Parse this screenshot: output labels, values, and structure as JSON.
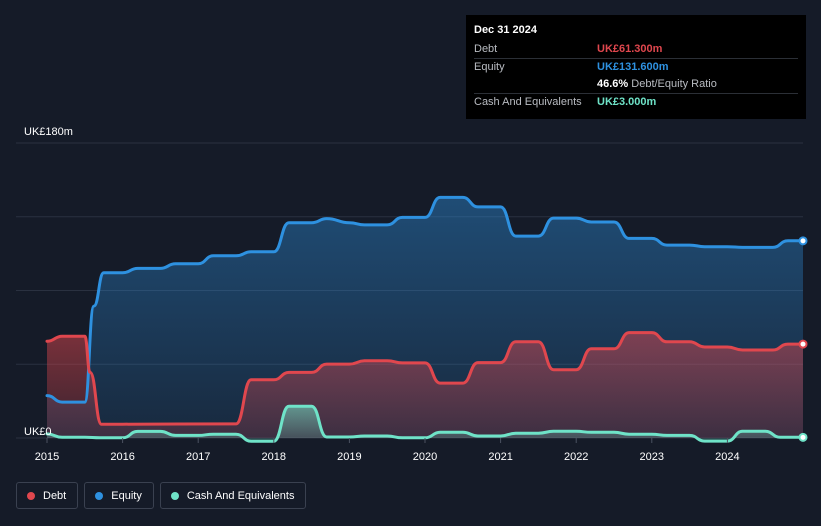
{
  "tooltip": {
    "date": "Dec 31 2024",
    "rows": [
      {
        "name": "Debt",
        "value": "UK£61.300m",
        "color": "#e0474e"
      },
      {
        "name": "Equity",
        "value": "UK£131.600m",
        "color": "#2e91e0"
      },
      {
        "name": "",
        "value": "46.6%",
        "extra": "Debt/Equity Ratio",
        "color": "#ffffff"
      },
      {
        "name": "Cash And Equivalents",
        "value": "UK£3.000m",
        "color": "#6fe3c8"
      }
    ]
  },
  "legend": [
    {
      "label": "Debt",
      "color": "#e0474e"
    },
    {
      "label": "Equity",
      "color": "#2e91e0"
    },
    {
      "label": "Cash And Equivalents",
      "color": "#6fe3c8"
    }
  ],
  "chart_data": {
    "type": "area",
    "title": "",
    "xlabel": "",
    "ylabel": "",
    "y_top_label": "UK£180m",
    "y_bottom_label": "UK£0",
    "ylim": [
      0,
      180
    ],
    "xlim": [
      2015.0,
      2025.0
    ],
    "x_ticks": [
      "2015",
      "2016",
      "2017",
      "2018",
      "2019",
      "2020",
      "2021",
      "2022",
      "2023",
      "2024"
    ],
    "grid": true,
    "legend_position": "bottom-left",
    "series": [
      {
        "name": "Equity",
        "color": "#2e91e0",
        "points": [
          [
            2015.0,
            25.9
          ],
          [
            2015.2,
            21.9
          ],
          [
            2015.5,
            21.9
          ],
          [
            2015.62,
            80.5
          ],
          [
            2015.75,
            100.8
          ],
          [
            2016.0,
            100.8
          ],
          [
            2016.2,
            103.5
          ],
          [
            2016.5,
            103.5
          ],
          [
            2016.7,
            106.3
          ],
          [
            2017.0,
            106.3
          ],
          [
            2017.2,
            111.2
          ],
          [
            2017.5,
            111.2
          ],
          [
            2017.7,
            113.6
          ],
          [
            2018.0,
            113.6
          ],
          [
            2018.2,
            131.4
          ],
          [
            2018.5,
            131.4
          ],
          [
            2018.7,
            133.9
          ],
          [
            2019.0,
            131.4
          ],
          [
            2019.2,
            130.0
          ],
          [
            2019.5,
            130.0
          ],
          [
            2019.7,
            134.6
          ],
          [
            2020.0,
            134.6
          ],
          [
            2020.2,
            146.8
          ],
          [
            2020.5,
            146.8
          ],
          [
            2020.7,
            141.0
          ],
          [
            2021.0,
            141.0
          ],
          [
            2021.2,
            123.2
          ],
          [
            2021.5,
            123.2
          ],
          [
            2021.7,
            134.2
          ],
          [
            2022.0,
            134.2
          ],
          [
            2022.2,
            131.8
          ],
          [
            2022.5,
            131.8
          ],
          [
            2022.7,
            121.8
          ],
          [
            2023.0,
            121.8
          ],
          [
            2023.2,
            117.7
          ],
          [
            2023.5,
            117.7
          ],
          [
            2023.7,
            116.7
          ],
          [
            2024.0,
            116.7
          ],
          [
            2024.2,
            116.3
          ],
          [
            2024.6,
            116.3
          ],
          [
            2024.8,
            120.3
          ],
          [
            2025.0,
            120.3
          ]
        ]
      },
      {
        "name": "Debt",
        "color": "#e0474e",
        "points": [
          [
            2015.0,
            59.0
          ],
          [
            2015.2,
            62.1
          ],
          [
            2015.5,
            62.1
          ],
          [
            2015.57,
            40.0
          ],
          [
            2015.72,
            8.4
          ],
          [
            2016.0,
            8.4
          ],
          [
            2017.5,
            8.6
          ],
          [
            2017.7,
            35.5
          ],
          [
            2018.0,
            35.5
          ],
          [
            2018.2,
            40.0
          ],
          [
            2018.5,
            40.0
          ],
          [
            2018.7,
            45.1
          ],
          [
            2019.0,
            45.1
          ],
          [
            2019.2,
            47.1
          ],
          [
            2019.5,
            47.1
          ],
          [
            2019.7,
            45.8
          ],
          [
            2020.0,
            45.8
          ],
          [
            2020.2,
            33.5
          ],
          [
            2020.5,
            33.5
          ],
          [
            2020.7,
            46.0
          ],
          [
            2021.0,
            46.0
          ],
          [
            2021.2,
            58.7
          ],
          [
            2021.5,
            58.7
          ],
          [
            2021.7,
            41.7
          ],
          [
            2022.0,
            41.7
          ],
          [
            2022.2,
            54.4
          ],
          [
            2022.5,
            54.4
          ],
          [
            2022.7,
            64.3
          ],
          [
            2023.0,
            64.3
          ],
          [
            2023.2,
            58.7
          ],
          [
            2023.5,
            58.7
          ],
          [
            2023.7,
            55.5
          ],
          [
            2024.0,
            55.5
          ],
          [
            2024.2,
            53.7
          ],
          [
            2024.6,
            53.7
          ],
          [
            2024.8,
            57.3
          ],
          [
            2025.0,
            57.3
          ]
        ]
      },
      {
        "name": "Cash And Equivalents",
        "color": "#6fe3c8",
        "points": [
          [
            2015.0,
            2.5
          ],
          [
            2015.2,
            0.4
          ],
          [
            2015.5,
            0.4
          ],
          [
            2015.7,
            0.1
          ],
          [
            2016.0,
            0.1
          ],
          [
            2016.2,
            4.0
          ],
          [
            2016.5,
            4.0
          ],
          [
            2016.7,
            1.6
          ],
          [
            2017.0,
            1.6
          ],
          [
            2017.2,
            2.3
          ],
          [
            2017.5,
            2.3
          ],
          [
            2017.7,
            -2.0
          ],
          [
            2018.0,
            -2.0
          ],
          [
            2018.2,
            19.4
          ],
          [
            2018.5,
            19.4
          ],
          [
            2018.7,
            0.6
          ],
          [
            2019.0,
            0.6
          ],
          [
            2019.2,
            1.2
          ],
          [
            2019.5,
            1.2
          ],
          [
            2019.7,
            0.1
          ],
          [
            2020.0,
            0.1
          ],
          [
            2020.2,
            3.5
          ],
          [
            2020.5,
            3.5
          ],
          [
            2020.7,
            1.2
          ],
          [
            2021.0,
            1.2
          ],
          [
            2021.2,
            2.9
          ],
          [
            2021.5,
            2.9
          ],
          [
            2021.7,
            4.1
          ],
          [
            2022.0,
            4.1
          ],
          [
            2022.2,
            3.5
          ],
          [
            2022.5,
            3.5
          ],
          [
            2022.7,
            2.3
          ],
          [
            2023.0,
            2.3
          ],
          [
            2023.2,
            1.6
          ],
          [
            2023.5,
            1.6
          ],
          [
            2023.7,
            -1.9
          ],
          [
            2024.0,
            -1.9
          ],
          [
            2024.2,
            4.1
          ],
          [
            2024.5,
            4.1
          ],
          [
            2024.7,
            0.4
          ],
          [
            2025.0,
            0.4
          ]
        ]
      }
    ]
  }
}
